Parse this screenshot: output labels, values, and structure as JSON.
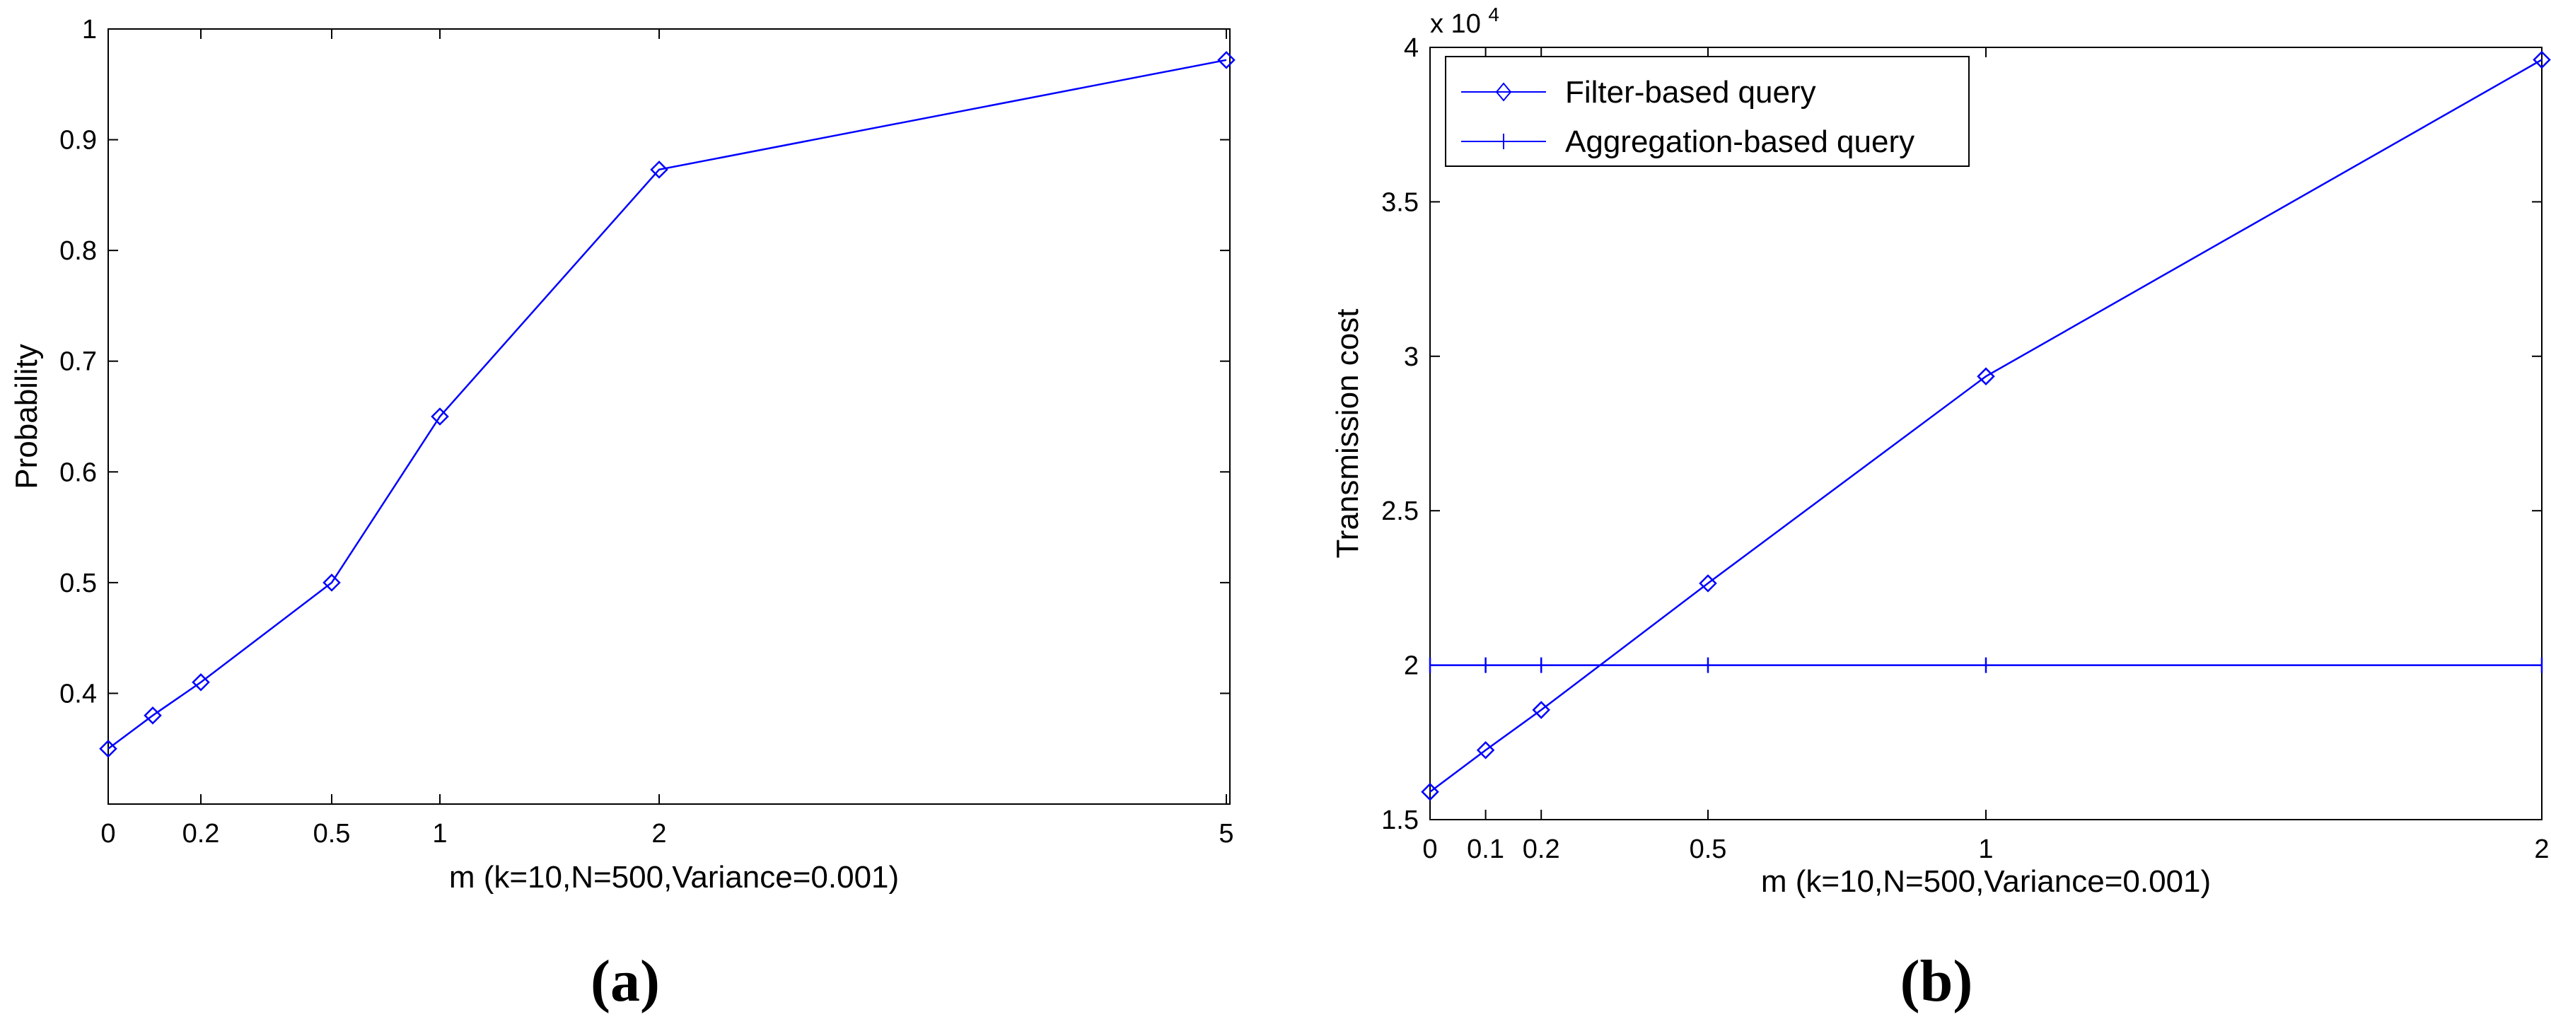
{
  "chart_data": [
    {
      "type": "line",
      "panel_label": "(a)",
      "xlabel": "m (k=10,N=500,Variance=0.001)",
      "ylabel": "Probability",
      "x_ticks": [
        0,
        0.2,
        0.5,
        1,
        2,
        5
      ],
      "x_tick_labels": [
        "0",
        "0.2",
        "0.5",
        "1",
        "2",
        "5"
      ],
      "y_ticks": [
        0.4,
        0.5,
        0.6,
        0.7,
        0.8,
        0.9,
        1
      ],
      "y_tick_labels": [
        "0.4",
        "0.5",
        "0.6",
        "0.7",
        "0.8",
        "0.9",
        "1"
      ],
      "series": [
        {
          "marker": "diamond",
          "color": "#0000ff",
          "x": [
            0,
            0.1,
            0.2,
            0.5,
            1,
            2,
            5
          ],
          "y": [
            0.35,
            0.38,
            0.41,
            0.5,
            0.65,
            0.873,
            0.972
          ]
        }
      ]
    },
    {
      "type": "line",
      "panel_label": "(b)",
      "xlabel": "m (k=10,N=500,Variance=0.001)",
      "ylabel": "Transmission cost",
      "y_multiplier_base": "x 10",
      "y_multiplier_exp": "4",
      "xlim": [
        0,
        2
      ],
      "ylim": [
        1.5,
        4
      ],
      "x_ticks": [
        0,
        0.1,
        0.2,
        0.5,
        1,
        2
      ],
      "x_tick_labels": [
        "0",
        "0.1",
        "0.2",
        "0.5",
        "1",
        "2"
      ],
      "y_ticks": [
        1.5,
        2,
        2.5,
        3,
        3.5,
        4
      ],
      "y_tick_labels": [
        "1.5",
        "2",
        "2.5",
        "3",
        "3.5",
        "4"
      ],
      "legend_position": "top-left",
      "series": [
        {
          "name": "Filter-based query",
          "marker": "diamond",
          "color": "#0000ff",
          "x": [
            0,
            0.1,
            0.2,
            0.5,
            1,
            2
          ],
          "y": [
            1.59,
            1.725,
            1.855,
            2.265,
            2.935,
            3.96
          ]
        },
        {
          "name": "Aggregation-based query",
          "marker": "vertical-tick",
          "color": "#0000ff",
          "x": [
            0,
            0.1,
            0.2,
            0.5,
            1,
            2
          ],
          "y": [
            2,
            2,
            2,
            2,
            2,
            2
          ]
        }
      ]
    }
  ]
}
